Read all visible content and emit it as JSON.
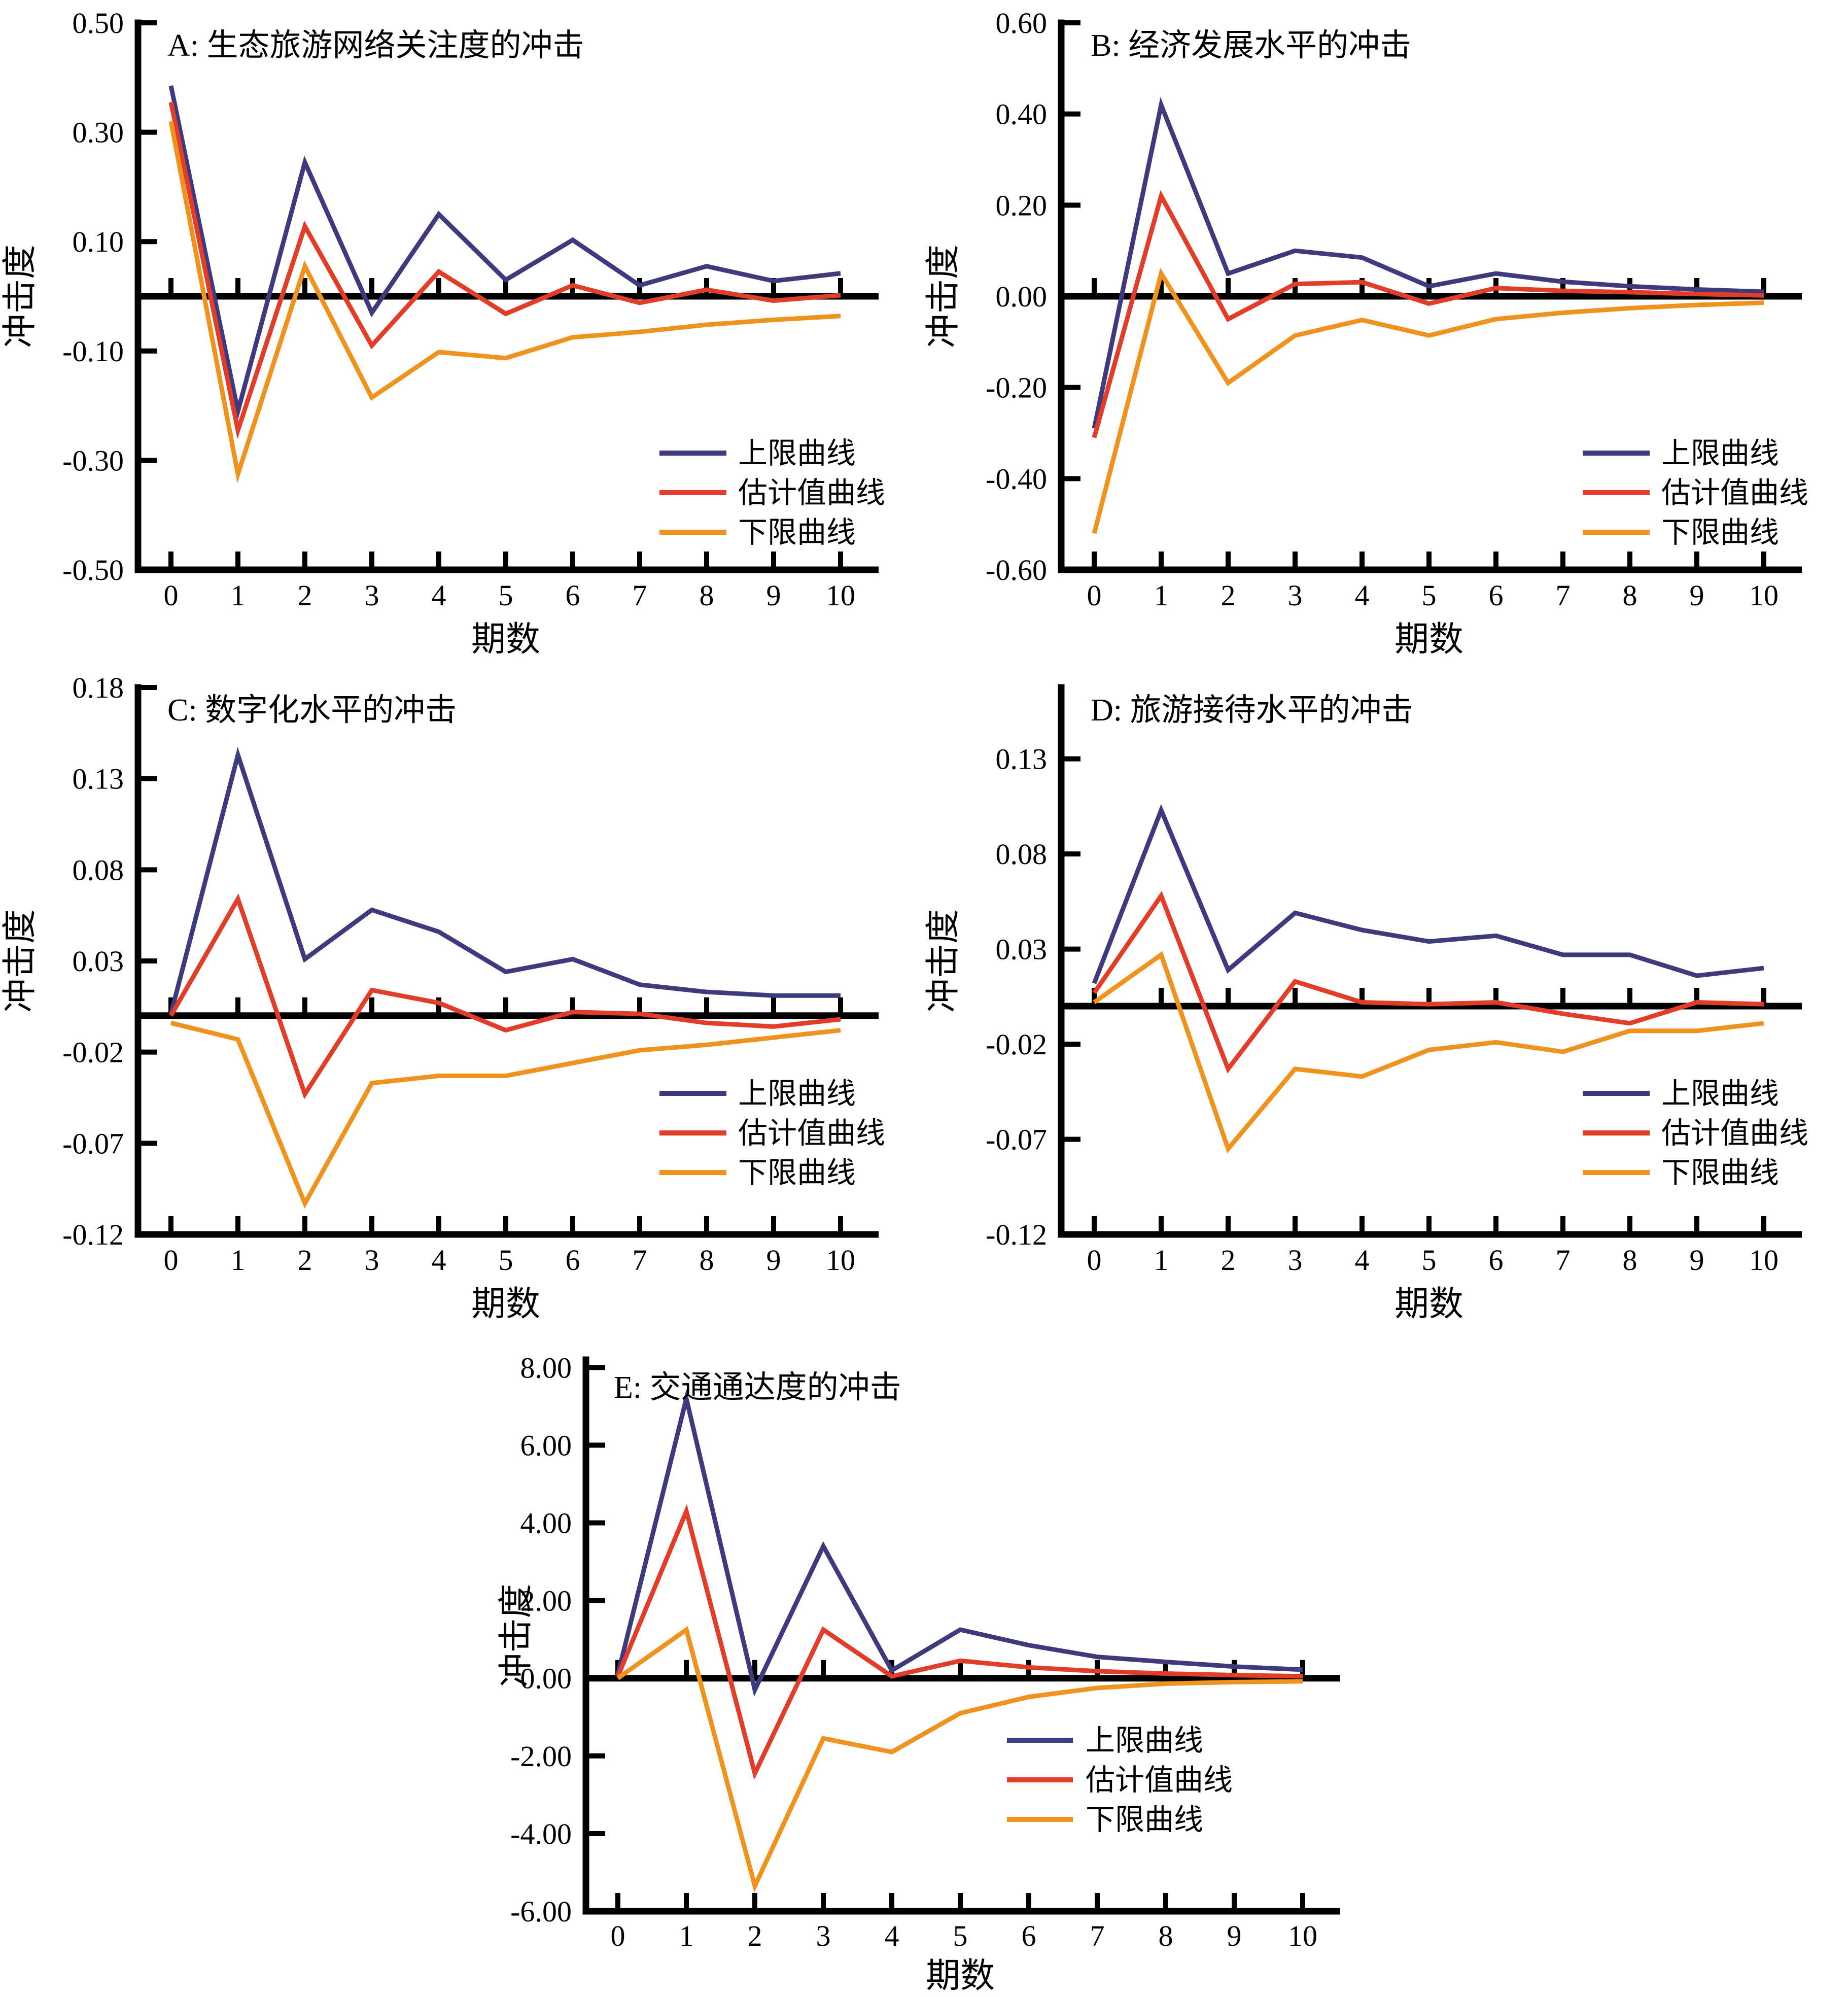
{
  "figure": {
    "background": "#ffffff",
    "axis_color": "#000000",
    "text_color": "#000000"
  },
  "colors": {
    "upper": "#3D3A7E",
    "estimate": "#E23D28",
    "lower": "#F0921E"
  },
  "legend": {
    "upper_label": "上限曲线",
    "estimate_label": "估计值曲线",
    "lower_label": "下限曲线"
  },
  "axis_titles": {
    "y": "冲击度",
    "x": "期数"
  },
  "chart_data": [
    {
      "id": "A",
      "type": "line",
      "title": "A: 生态旅游网络关注度的冲击",
      "xlabel": "期数",
      "ylabel": "冲击度",
      "x": [
        0,
        1,
        2,
        3,
        4,
        5,
        6,
        7,
        8,
        9,
        10
      ],
      "x_tick_labels": [
        "0",
        "1",
        "2",
        "3",
        "4",
        "5",
        "6",
        "7",
        "8",
        "9",
        "10"
      ],
      "ylim": [
        -0.5,
        0.5
      ],
      "y_ticks": [
        0.5,
        0.3,
        0.1,
        -0.1,
        -0.3,
        -0.5
      ],
      "y_tick_labels": [
        "0.50",
        "0.30",
        "0.10",
        "-0.10",
        "-0.30",
        "-0.50"
      ],
      "grid": false,
      "legend_position": "lower-right",
      "series": [
        {
          "name": "上限曲线",
          "color_key": "upper",
          "values": [
            0.385,
            -0.21,
            0.245,
            -0.03,
            0.15,
            0.03,
            0.103,
            0.02,
            0.055,
            0.028,
            0.042
          ]
        },
        {
          "name": "估计值曲线",
          "color_key": "estimate",
          "values": [
            0.355,
            -0.245,
            0.128,
            -0.09,
            0.045,
            -0.032,
            0.02,
            -0.012,
            0.012,
            -0.008,
            0.002
          ]
        },
        {
          "name": "下限曲线",
          "color_key": "lower",
          "values": [
            0.32,
            -0.325,
            0.055,
            -0.185,
            -0.102,
            -0.113,
            -0.075,
            -0.065,
            -0.052,
            -0.043,
            -0.036
          ]
        }
      ]
    },
    {
      "id": "B",
      "type": "line",
      "title": "B: 经济发展水平的冲击",
      "xlabel": "期数",
      "ylabel": "冲击度",
      "x": [
        0,
        1,
        2,
        3,
        4,
        5,
        6,
        7,
        8,
        9,
        10
      ],
      "x_tick_labels": [
        "0",
        "1",
        "2",
        "3",
        "4",
        "5",
        "6",
        "7",
        "8",
        "9",
        "10"
      ],
      "ylim": [
        -0.6,
        0.6
      ],
      "y_ticks": [
        0.6,
        0.4,
        0.2,
        0.0,
        -0.2,
        -0.4,
        -0.6
      ],
      "y_tick_labels": [
        "0.60",
        "0.40",
        "0.20",
        "0.00",
        "-0.20",
        "-0.40",
        "-0.60"
      ],
      "grid": false,
      "legend_position": "lower-right",
      "series": [
        {
          "name": "上限曲线",
          "color_key": "upper",
          "values": [
            -0.29,
            0.42,
            0.05,
            0.1,
            0.085,
            0.022,
            0.05,
            0.032,
            0.022,
            0.015,
            0.01
          ]
        },
        {
          "name": "估计值曲线",
          "color_key": "estimate",
          "values": [
            -0.31,
            0.22,
            -0.05,
            0.027,
            0.031,
            -0.016,
            0.018,
            0.012,
            0.009,
            0.005,
            0.002
          ]
        },
        {
          "name": "下限曲线",
          "color_key": "lower",
          "values": [
            -0.52,
            0.05,
            -0.19,
            -0.086,
            -0.052,
            -0.086,
            -0.05,
            -0.036,
            -0.026,
            -0.019,
            -0.014
          ]
        }
      ]
    },
    {
      "id": "C",
      "type": "line",
      "title": "C: 数字化水平的冲击",
      "xlabel": "期数",
      "ylabel": "冲击度",
      "x": [
        0,
        1,
        2,
        3,
        4,
        5,
        6,
        7,
        8,
        9,
        10
      ],
      "x_tick_labels": [
        "0",
        "1",
        "2",
        "3",
        "4",
        "5",
        "6",
        "7",
        "8",
        "9",
        "10"
      ],
      "ylim": [
        -0.12,
        0.18
      ],
      "y_ticks": [
        0.18,
        0.13,
        0.08,
        0.03,
        -0.02,
        -0.07,
        -0.12
      ],
      "y_tick_labels": [
        "0.18",
        "0.13",
        "0.08",
        "0.03",
        "-0.02",
        "-0.07",
        "-0.12"
      ],
      "grid": false,
      "legend_position": "lower-right",
      "series": [
        {
          "name": "上限曲线",
          "color_key": "upper",
          "values": [
            0.001,
            0.143,
            0.031,
            0.058,
            0.046,
            0.024,
            0.031,
            0.017,
            0.013,
            0.011,
            0.011
          ]
        },
        {
          "name": "估计值曲线",
          "color_key": "estimate",
          "values": [
            0.0,
            0.064,
            -0.043,
            0.014,
            0.007,
            -0.008,
            0.002,
            0.001,
            -0.004,
            -0.006,
            -0.002
          ]
        },
        {
          "name": "下限曲线",
          "color_key": "lower",
          "values": [
            -0.004,
            -0.013,
            -0.103,
            -0.037,
            -0.033,
            -0.033,
            -0.026,
            -0.019,
            -0.016,
            -0.012,
            -0.008
          ]
        }
      ]
    },
    {
      "id": "D",
      "type": "line",
      "title": "D: 旅游接待水平的冲击",
      "xlabel": "期数",
      "ylabel": "冲击度",
      "x": [
        0,
        1,
        2,
        3,
        4,
        5,
        6,
        7,
        8,
        9,
        10
      ],
      "x_tick_labels": [
        "0",
        "1",
        "2",
        "3",
        "4",
        "5",
        "6",
        "7",
        "8",
        "9",
        "10"
      ],
      "ylim": [
        -0.12,
        0.1675
      ],
      "y_ticks": [
        0.13,
        0.08,
        0.03,
        -0.02,
        -0.07,
        -0.12
      ],
      "y_tick_labels": [
        "0.13",
        "0.08",
        "0.03",
        "-0.02",
        "-0.07",
        "-0.12"
      ],
      "grid": false,
      "legend_position": "lower-right",
      "series": [
        {
          "name": "上限曲线",
          "color_key": "upper",
          "values": [
            0.012,
            0.103,
            0.019,
            0.049,
            0.04,
            0.034,
            0.037,
            0.027,
            0.027,
            0.016,
            0.02
          ]
        },
        {
          "name": "估计值曲线",
          "color_key": "estimate",
          "values": [
            0.007,
            0.058,
            -0.033,
            0.013,
            0.002,
            0.001,
            0.002,
            -0.004,
            -0.009,
            0.002,
            0.001
          ]
        },
        {
          "name": "下限曲线",
          "color_key": "lower",
          "values": [
            0.002,
            0.027,
            -0.075,
            -0.033,
            -0.037,
            -0.023,
            -0.019,
            -0.024,
            -0.013,
            -0.013,
            -0.009
          ]
        }
      ]
    },
    {
      "id": "E",
      "type": "line",
      "title": "E: 交通通达度的冲击",
      "xlabel": "期数",
      "ylabel": "冲击度",
      "x": [
        0,
        1,
        2,
        3,
        4,
        5,
        6,
        7,
        8,
        9,
        10
      ],
      "x_tick_labels": [
        "0",
        "1",
        "2",
        "3",
        "4",
        "5",
        "6",
        "7",
        "8",
        "9",
        "10"
      ],
      "ylim": [
        -6.0,
        8.2
      ],
      "y_ticks": [
        8,
        6,
        4,
        2,
        0,
        -2,
        -4,
        -6
      ],
      "y_tick_labels": [
        "8.00",
        "6.00",
        "4.00",
        "2.00",
        "0.00",
        "-2.00",
        "-4.00",
        "-6.00"
      ],
      "grid": false,
      "legend_position": "lower-right",
      "series": [
        {
          "name": "上限曲线",
          "color_key": "upper",
          "values": [
            0.1,
            7.2,
            -0.3,
            3.4,
            0.2,
            1.25,
            0.85,
            0.55,
            0.42,
            0.3,
            0.22
          ]
        },
        {
          "name": "估计值曲线",
          "color_key": "estimate",
          "values": [
            0.05,
            4.3,
            -2.45,
            1.25,
            0.05,
            0.45,
            0.28,
            0.18,
            0.12,
            0.08,
            0.05
          ]
        },
        {
          "name": "下限曲线",
          "color_key": "lower",
          "values": [
            0.0,
            1.25,
            -5.35,
            -1.55,
            -1.9,
            -0.9,
            -0.48,
            -0.25,
            -0.14,
            -0.1,
            -0.08
          ]
        }
      ]
    }
  ]
}
